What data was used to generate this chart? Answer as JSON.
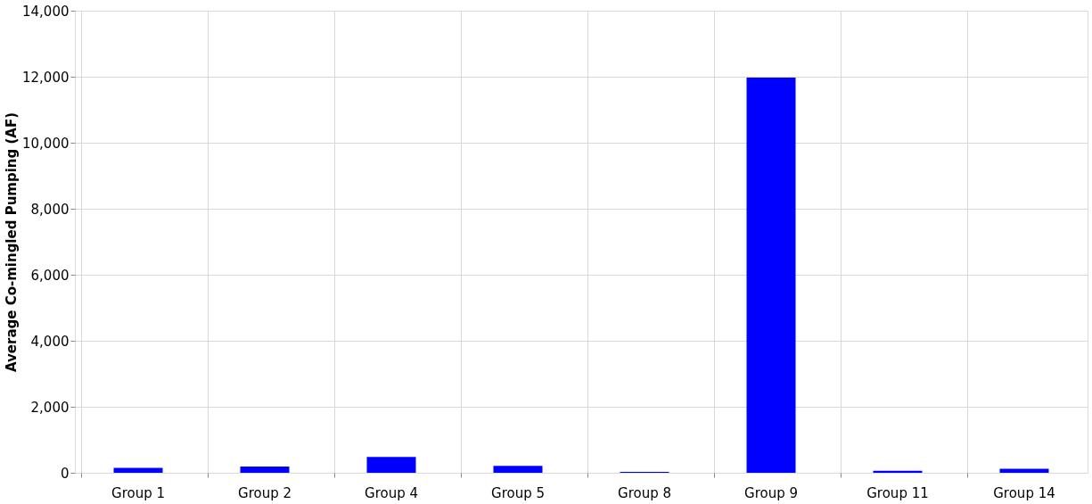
{
  "chart_data": {
    "type": "bar",
    "ylabel": "Average Co-mingled Pumping (AF)",
    "categories": [
      "Group 1",
      "Group 2",
      "Group 4",
      "Group 5",
      "Group 8",
      "Group 9",
      "Group 11",
      "Group 14"
    ],
    "values": [
      150,
      190,
      480,
      210,
      30,
      11970,
      60,
      120
    ],
    "color": "#0000ff",
    "ylim": [
      0,
      14000
    ],
    "yticks": [
      0,
      {
        "value": 2000,
        "label": "2,000"
      },
      {
        "value": 4000,
        "label": "4,000"
      },
      {
        "value": 6000,
        "label": "6,000"
      },
      {
        "value": 8000,
        "label": "8,000"
      },
      {
        "value": 10000,
        "label": "10,000"
      },
      {
        "value": 12000,
        "label": "12,000"
      },
      {
        "value": 14000,
        "label": "14,000"
      }
    ],
    "grid": true
  }
}
